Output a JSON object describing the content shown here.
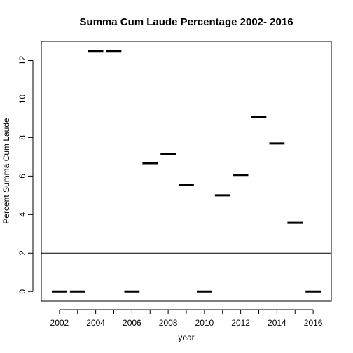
{
  "chart_data": {
    "type": "scatter",
    "title": "Summa Cum Laude Percentage 2002- 2016",
    "xlabel": "year",
    "ylabel": "Percent Summa Cum Laude",
    "xlim": [
      2001,
      2017
    ],
    "ylim": [
      -0.5,
      13
    ],
    "x_ticks": [
      "2002",
      "2004",
      "2006",
      "2008",
      "2010",
      "2012",
      "2014",
      "2016"
    ],
    "y_ticks": [
      "0",
      "2",
      "4",
      "6",
      "8",
      "10",
      "12"
    ],
    "marker": "horizontal-dash",
    "series": [
      {
        "x": [
          2002,
          2003,
          2004,
          2005,
          2006,
          2007,
          2008,
          2009,
          2010,
          2011,
          2012,
          2013,
          2014,
          2015,
          2016
        ],
        "y": [
          0,
          0,
          12.5,
          12.5,
          0,
          6.67,
          7.14,
          5.56,
          0,
          5.0,
          6.06,
          9.09,
          7.69,
          3.57,
          0
        ]
      }
    ],
    "reference_line": {
      "orientation": "horizontal",
      "y": 2
    },
    "grid": false
  }
}
